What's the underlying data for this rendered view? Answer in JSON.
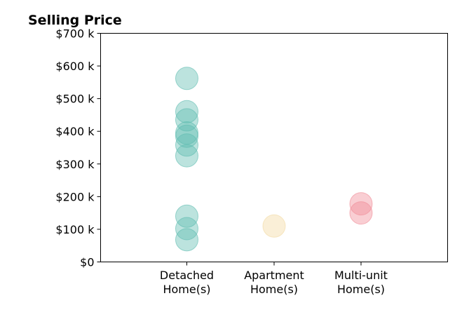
{
  "chart_data": {
    "type": "scatter",
    "title": "Selling Price",
    "xlabel": "",
    "ylabel": "",
    "categories": [
      [
        "Detached",
        "Home(s)"
      ],
      [
        "Apartment",
        "Home(s)"
      ],
      [
        "Multi-unit",
        "Home(s)"
      ]
    ],
    "ylim": [
      0,
      700000
    ],
    "yticks": [
      0,
      100000,
      200000,
      300000,
      400000,
      500000,
      600000,
      700000
    ],
    "ytick_labels": [
      "$0",
      "$100 k",
      "$200 k",
      "$300 k",
      "$400 k",
      "$500 k",
      "$600 k",
      "$700 k"
    ],
    "grid": false,
    "series": [
      {
        "category": 0,
        "color": "#5fbdb0",
        "values": [
          562000,
          460000,
          435000,
          395000,
          385000,
          358000,
          325000,
          140000,
          102000,
          68000
        ]
      },
      {
        "category": 1,
        "color": "#f2d9a0",
        "values": [
          110000
        ]
      },
      {
        "category": 2,
        "color": "#f08a96",
        "values": [
          178000,
          150000
        ]
      }
    ]
  }
}
